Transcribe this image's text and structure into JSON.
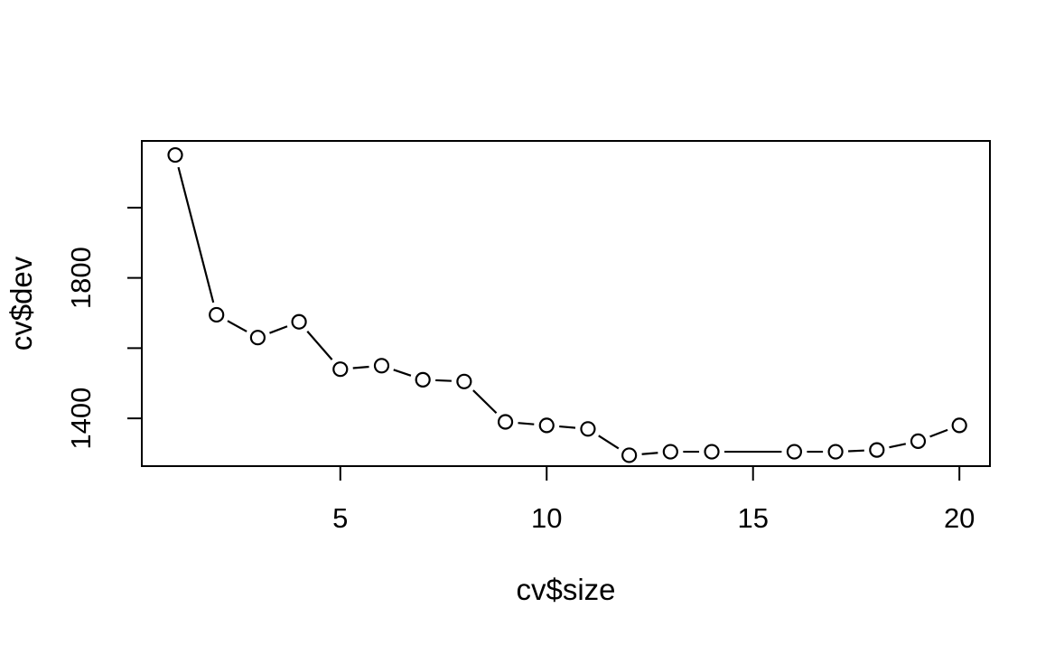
{
  "figure": {
    "background": "#ffffff",
    "stroke_color": "#000000",
    "text_color": "#000000"
  },
  "chart_data": {
    "type": "line",
    "title": "",
    "xlabel": "cv$size",
    "ylabel": "cv$dev",
    "series": [
      {
        "name": "cv$dev vs cv$size",
        "marker": "open-circle",
        "line": "solid-segments-with-gaps-around-markers (R type=b)",
        "x": [
          1,
          2,
          3,
          4,
          5,
          6,
          7,
          8,
          9,
          10,
          11,
          12,
          13,
          14,
          16,
          17,
          18,
          19,
          20
        ],
        "y": [
          2150,
          1695,
          1630,
          1675,
          1540,
          1550,
          1510,
          1505,
          1390,
          1380,
          1370,
          1295,
          1305,
          1305,
          1305,
          1305,
          1310,
          1335,
          1380
        ]
      }
    ],
    "xlim": [
      0.19,
      20.74
    ],
    "ylim": [
      1264,
      2190
    ],
    "xticks": [
      5,
      10,
      15,
      20
    ],
    "xtick_labels": [
      "5",
      "10",
      "15",
      "20"
    ],
    "yticks": [
      1400,
      1600,
      1800,
      2000
    ],
    "ytick_labels": [
      "1400",
      "",
      "1800",
      ""
    ],
    "grid": false,
    "box": true,
    "legend": null,
    "notes": "Point for size 15 is absent; a long solid segment connects size 14 to size 16. Minimum deviance ~1295 at size 12."
  }
}
